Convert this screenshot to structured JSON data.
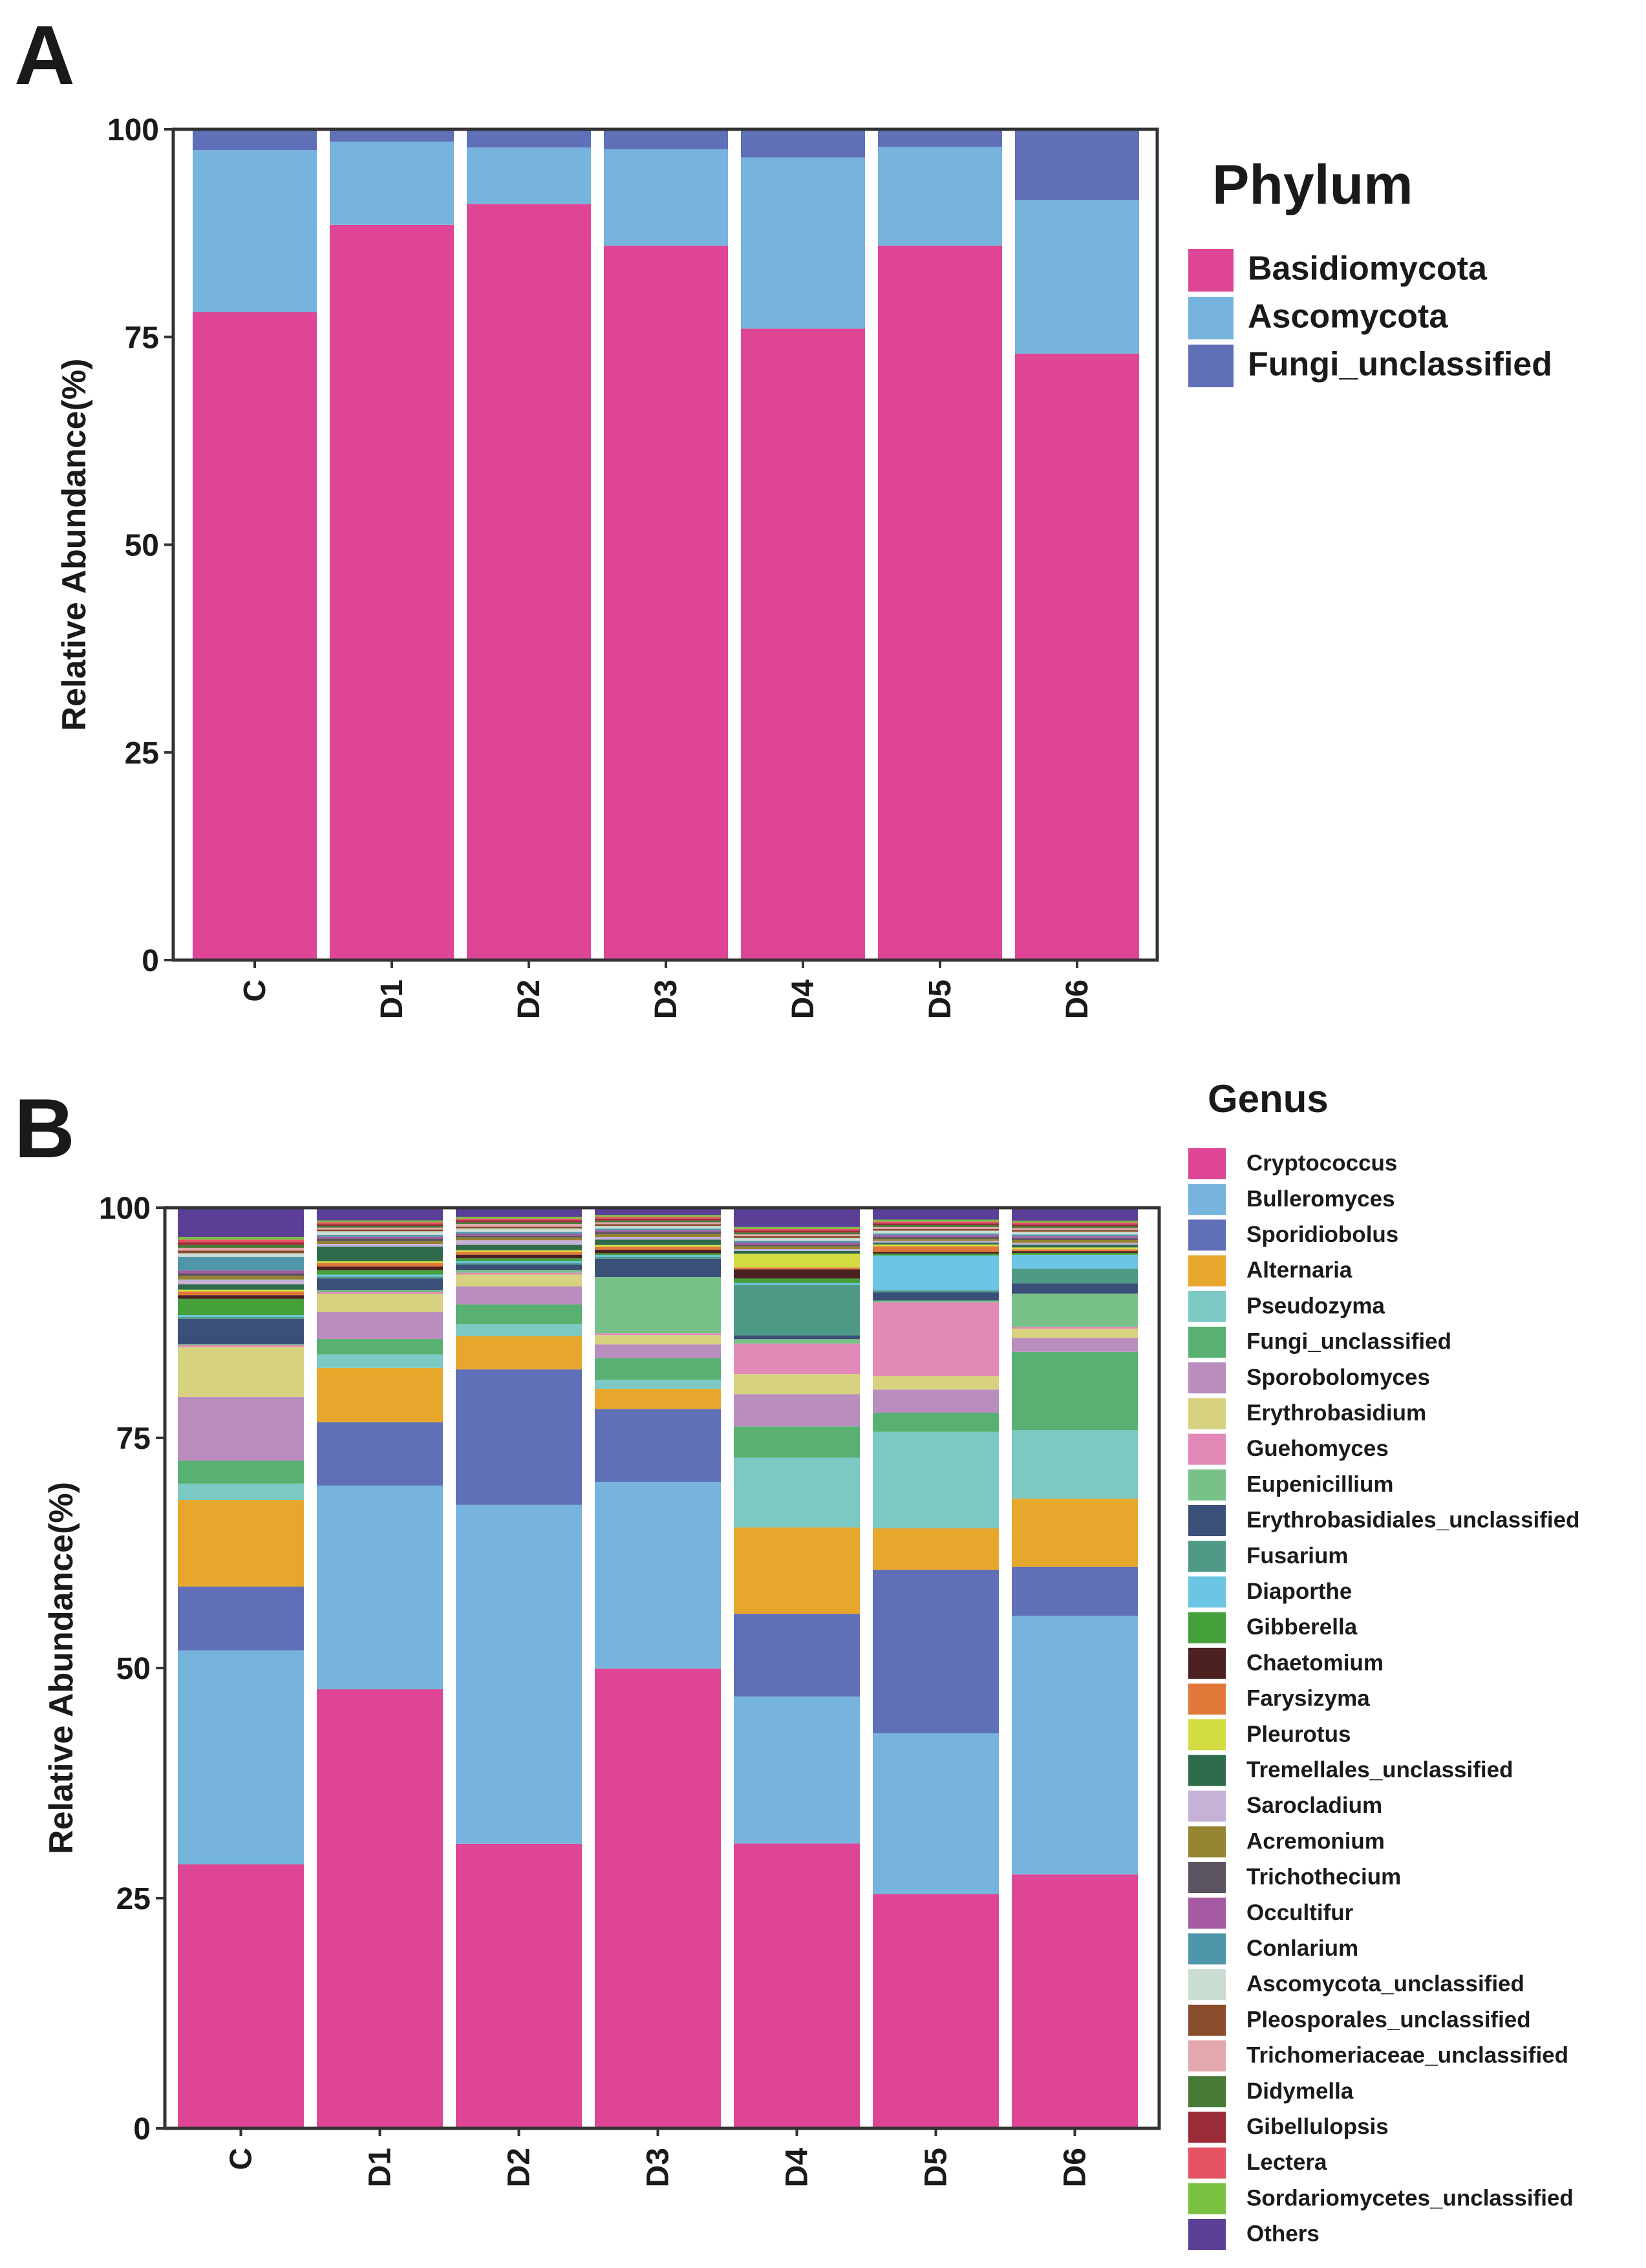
{
  "figure": {
    "panel_a_letter": "A",
    "panel_b_letter": "B"
  },
  "chart_data": [
    {
      "type": "bar",
      "stacked": true,
      "panel": "A",
      "title": "",
      "xlabel": "",
      "ylabel": "Relative Abundance(%)",
      "ylim": [
        0,
        100
      ],
      "yticks": [
        "0",
        "25",
        "50",
        "75",
        "100"
      ],
      "categories": [
        "C",
        "D1",
        "D2",
        "D3",
        "D4",
        "D5",
        "D6"
      ],
      "legend_title": "Phylum",
      "legend_position": "right",
      "series": [
        {
          "name": "Basidiomycota",
          "color": "#de4695",
          "values": [
            78,
            88.5,
            91,
            86,
            76,
            86,
            73
          ]
        },
        {
          "name": "Ascomycota",
          "color": "#76b4dd",
          "values": [
            19.5,
            10,
            6.8,
            11.6,
            20.6,
            11.9,
            18.5
          ]
        },
        {
          "name": "Fungi_unclassified",
          "color": "#5f6fb8",
          "values": [
            2.5,
            1.5,
            2.2,
            2.4,
            3.4,
            2.1,
            8.5
          ]
        }
      ]
    },
    {
      "type": "bar",
      "stacked": true,
      "panel": "B",
      "title": "",
      "xlabel": "",
      "ylabel": "Relative Abundance(%)",
      "ylim": [
        0,
        100
      ],
      "yticks": [
        "0",
        "25",
        "50",
        "75",
        "100"
      ],
      "categories": [
        "C",
        "D1",
        "D2",
        "D3",
        "D4",
        "D5",
        "D6"
      ],
      "legend_title": "Genus",
      "legend_position": "right",
      "series": [
        {
          "name": "Cryptococcus",
          "color": "#de4695",
          "values": [
            29,
            48.5,
            31.5,
            50.5,
            31,
            25.5,
            27.5
          ]
        },
        {
          "name": "Bulleromyces",
          "color": "#76b4dd",
          "values": [
            23.5,
            22.5,
            37.5,
            20.5,
            16,
            17.5,
            28
          ]
        },
        {
          "name": "Sporidiobolus",
          "color": "#5f6fb8",
          "values": [
            7,
            7,
            15,
            8,
            9,
            17.8,
            5.3
          ]
        },
        {
          "name": "Alternaria",
          "color": "#e7a72d",
          "values": [
            9.5,
            6,
            3.7,
            2.2,
            9.4,
            4.5,
            7.4
          ]
        },
        {
          "name": "Pseudozyma",
          "color": "#7cc8c2",
          "values": [
            1.8,
            1.5,
            1.3,
            1,
            7.6,
            10.5,
            7.4
          ]
        },
        {
          "name": "Fungi_unclassified",
          "color": "#58b073",
          "values": [
            2.5,
            1.7,
            2.2,
            2.4,
            3.4,
            2.1,
            8.5
          ]
        },
        {
          "name": "Sporobolomyces",
          "color": "#b98ebe",
          "values": [
            7,
            3,
            2,
            1.5,
            3.5,
            2.5,
            1.5
          ]
        },
        {
          "name": "Erythrobasidium",
          "color": "#d6d27f",
          "values": [
            5.5,
            2,
            1.3,
            1,
            2.2,
            1.5,
            1
          ]
        },
        {
          "name": "Guehomyces",
          "color": "#e289b8",
          "values": [
            0.2,
            0.2,
            0.2,
            0.2,
            3.3,
            8,
            0.2
          ]
        },
        {
          "name": "Eupenicillium",
          "color": "#78c189",
          "values": [
            0.1,
            0.2,
            0.3,
            6.2,
            0.5,
            0.2,
            3.6
          ]
        },
        {
          "name": "Erythrobasidiales_unclassified",
          "color": "#3b5078",
          "values": [
            2.8,
            1.3,
            0.6,
            2,
            0.4,
            0.9,
            1.1
          ]
        },
        {
          "name": "Fusarium",
          "color": "#4f9a87",
          "values": [
            0.2,
            0.2,
            0.2,
            0.2,
            5.5,
            0.2,
            1.6
          ]
        },
        {
          "name": "Diaporthe",
          "color": "#6cc6e3",
          "values": [
            0.2,
            0.2,
            0.2,
            0.2,
            0.2,
            3.8,
            1.5
          ]
        },
        {
          "name": "Gibberella",
          "color": "#45a03a",
          "values": [
            1.8,
            0.5,
            0.3,
            0.2,
            0.5,
            0.2,
            0.2
          ]
        },
        {
          "name": "Chaetomium",
          "color": "#4b2121",
          "values": [
            0.4,
            0.4,
            0.4,
            0.4,
            1,
            0.2,
            0.2
          ]
        },
        {
          "name": "Farysizyma",
          "color": "#e2773a",
          "values": [
            0.4,
            0.4,
            0.3,
            0.3,
            0.2,
            0.6,
            0.2
          ]
        },
        {
          "name": "Pleurotus",
          "color": "#d3dc43",
          "values": [
            0.2,
            0.2,
            0.2,
            0.2,
            1.5,
            0.2,
            0.2
          ]
        },
        {
          "name": "Tremellales_unclassified",
          "color": "#2e6b4c",
          "values": [
            0.6,
            1.6,
            0.6,
            0.6,
            0.3,
            0.2,
            0.3
          ]
        },
        {
          "name": "Sarocladium",
          "color": "#c6b1d7",
          "values": [
            0.5,
            0.3,
            0.5,
            0.3,
            0.2,
            0.2,
            0.2
          ]
        },
        {
          "name": "Acremonium",
          "color": "#948330",
          "values": [
            0.4,
            0.3,
            0.3,
            0.3,
            0.3,
            0.2,
            0.3
          ]
        },
        {
          "name": "Trichothecium",
          "color": "#5c5460",
          "values": [
            0.3,
            0.3,
            0.2,
            0.2,
            0.2,
            0.2,
            0.2
          ]
        },
        {
          "name": "Occultifur",
          "color": "#a65aa3",
          "values": [
            0.3,
            0.2,
            0.2,
            0.2,
            0.2,
            0.2,
            0.2
          ]
        },
        {
          "name": "Conlarium",
          "color": "#5096aa",
          "values": [
            1.5,
            0.2,
            0.2,
            0.2,
            0.2,
            0.2,
            0.2
          ]
        },
        {
          "name": "Ascomycota_unclassified",
          "color": "#c9ddd3",
          "values": [
            0.4,
            0.4,
            0.4,
            0.3,
            0.3,
            0.3,
            0.3
          ]
        },
        {
          "name": "Pleosporales_unclassified",
          "color": "#8a4d2b",
          "values": [
            0.3,
            0.2,
            0.2,
            0.2,
            0.2,
            0.2,
            0.2
          ]
        },
        {
          "name": "Trichomeriaceae_unclassified",
          "color": "#e3a8ae",
          "values": [
            0.3,
            0.2,
            0.3,
            0.2,
            0.2,
            0.2,
            0.2
          ]
        },
        {
          "name": "Didymella",
          "color": "#467a35",
          "values": [
            0.3,
            0.2,
            0.2,
            0.2,
            0.2,
            0.2,
            0.2
          ]
        },
        {
          "name": "Gibellulopsis",
          "color": "#9b2b37",
          "values": [
            0.3,
            0.2,
            0.2,
            0.2,
            0.2,
            0.2,
            0.2
          ]
        },
        {
          "name": "Lectera",
          "color": "#e65363",
          "values": [
            0.3,
            0.2,
            0.2,
            0.2,
            0.2,
            0.2,
            0.2
          ]
        },
        {
          "name": "Sordariomycetes_unclassified",
          "color": "#7ac142",
          "values": [
            0.3,
            0.2,
            0.2,
            0.2,
            0.2,
            0.2,
            0.2
          ]
        },
        {
          "name": "Others",
          "color": "#5b3e96",
          "values": [
            3.2,
            1.4,
            1,
            0.8,
            2.1,
            1.3,
            1.4
          ]
        }
      ]
    }
  ]
}
